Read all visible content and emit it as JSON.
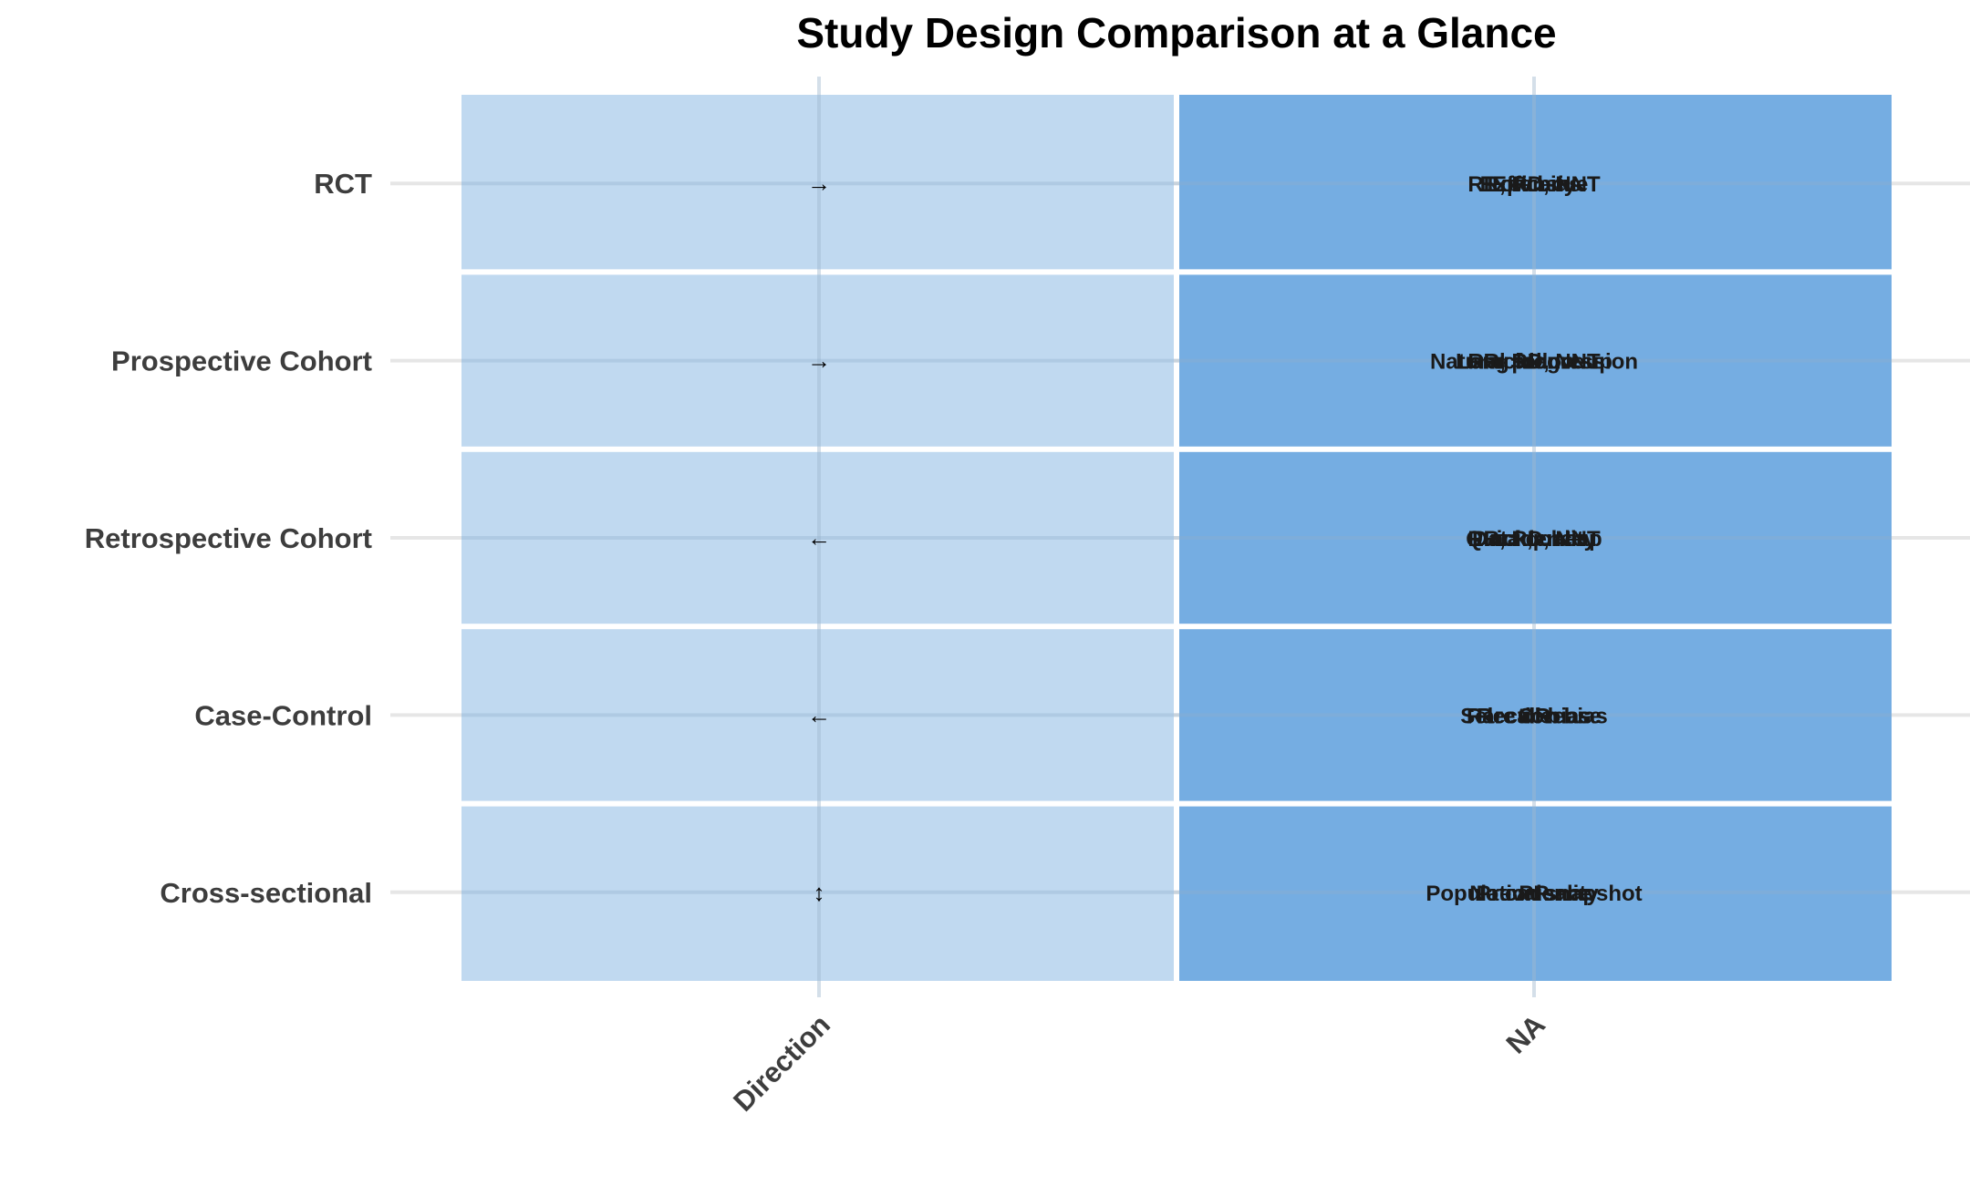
{
  "chart_data": {
    "type": "heatmap",
    "title": "Study Design Comparison at a Glance",
    "xlabel": "",
    "ylabel": "",
    "columns": [
      "Direction",
      "NA"
    ],
    "rows": [
      "RCT",
      "Prospective Cohort",
      "Retrospective Cohort",
      "Case-Control",
      "Cross-sectional"
    ],
    "cells": [
      {
        "row": "RCT",
        "direction": "→",
        "na_labels": [
          "Efficacy",
          "RR, RD, NNT",
          "Expensive",
          "Low bias"
        ]
      },
      {
        "row": "Prospective Cohort",
        "direction": "→",
        "na_labels": [
          "Natural progression",
          "RR, RD, NNT",
          "Long follow-up",
          "Incidence"
        ]
      },
      {
        "row": "Retrospective Cohort",
        "direction": "←",
        "na_labels": [
          "Quick, cheap",
          "RR, RD, NNT",
          "Data quality",
          "Incidence"
        ]
      },
      {
        "row": "Case-Control",
        "direction": "←",
        "na_labels": [
          "Rare disease",
          "OR",
          "Selection bias",
          "Recall bias"
        ]
      },
      {
        "row": "Cross-sectional",
        "direction": "↕",
        "na_labels": [
          "Population snapshot",
          "Prevalence",
          "PR",
          "No causality"
        ]
      }
    ],
    "colors": {
      "direction_cell": "#c0d9f0",
      "na_cell": "#75ade2",
      "grid": "#e6e6e6"
    },
    "grid": true,
    "legend": "none"
  }
}
